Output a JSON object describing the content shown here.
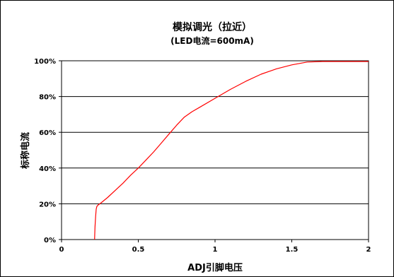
{
  "chart_data": {
    "type": "line",
    "title": "模拟调光（拉近）",
    "subtitle": "(LED电流=600mA)",
    "xlabel": "ADJ引脚电压",
    "ylabel": "标称电流",
    "xlim": [
      0,
      2
    ],
    "ylim": [
      0,
      100
    ],
    "x_ticks": [
      "0",
      "0.5",
      "1",
      "1.5",
      "2"
    ],
    "y_ticks": [
      "0%",
      "20%",
      "40%",
      "60%",
      "80%",
      "100%"
    ],
    "grid": "horizontal",
    "series": [
      {
        "color": "#ff0000",
        "x": [
          0.215,
          0.218,
          0.222,
          0.226,
          0.23,
          0.24,
          0.25,
          0.3,
          0.35,
          0.4,
          0.45,
          0.5,
          0.55,
          0.6,
          0.65,
          0.7,
          0.75,
          0.8,
          0.85,
          0.9,
          1.0,
          1.1,
          1.2,
          1.3,
          1.4,
          1.5,
          1.55,
          1.6,
          1.7,
          1.8,
          1.9,
          2.0
        ],
        "values": [
          0,
          7,
          13,
          17,
          18.5,
          19.5,
          20,
          23.5,
          27.5,
          31.5,
          36,
          40,
          44.5,
          49,
          54,
          59,
          64,
          68.5,
          71.5,
          74,
          79,
          84,
          88.5,
          92.5,
          95.5,
          97.7,
          98.5,
          99.3,
          99.6,
          99.6,
          99.6,
          99.6
        ]
      }
    ]
  }
}
